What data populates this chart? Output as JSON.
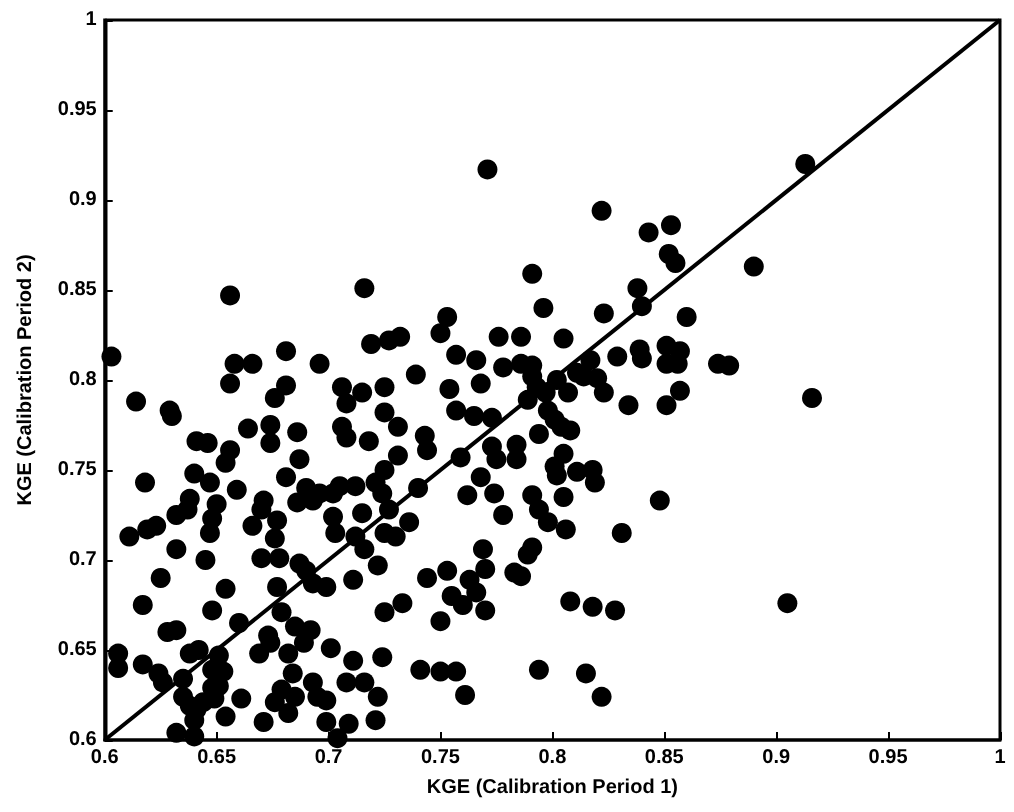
{
  "chart_data": {
    "type": "scatter",
    "xlabel": "KGE (Calibration Period 1)",
    "ylabel": "KGE (Calibration Period 2)",
    "xlim": [
      0.6,
      1
    ],
    "ylim": [
      0.6,
      1
    ],
    "xticks": [
      0.6,
      0.65,
      0.7,
      0.75,
      0.8,
      0.85,
      0.9,
      0.95,
      1
    ],
    "yticks": [
      0.6,
      0.65,
      0.7,
      0.75,
      0.8,
      0.85,
      0.9,
      0.95,
      1
    ],
    "grid": false,
    "marker": "circle",
    "series": [
      {
        "color": "#000000",
        "x": [
          0.656,
          0.716,
          0.603,
          0.658,
          0.666,
          0.681,
          0.696,
          0.719,
          0.727,
          0.614,
          0.629,
          0.63,
          0.656,
          0.681,
          0.676,
          0.706,
          0.708,
          0.715,
          0.725,
          0.725,
          0.641,
          0.646,
          0.664,
          0.674,
          0.686,
          0.674,
          0.706,
          0.708,
          0.718,
          0.656,
          0.654,
          0.687,
          0.64,
          0.647,
          0.618,
          0.681,
          0.69,
          0.696,
          0.686,
          0.693,
          0.702,
          0.705,
          0.712,
          0.721,
          0.725,
          0.724,
          0.659,
          0.638,
          0.65,
          0.632,
          0.637,
          0.648,
          0.671,
          0.67,
          0.677,
          0.647,
          0.611,
          0.619,
          0.623,
          0.632,
          0.645,
          0.666,
          0.676,
          0.703,
          0.702,
          0.712,
          0.715,
          0.725,
          0.716,
          0.727,
          0.67,
          0.678,
          0.687,
          0.69,
          0.693,
          0.699,
          0.711,
          0.722,
          0.625,
          0.677,
          0.654,
          0.648,
          0.617,
          0.679,
          0.725,
          0.66,
          0.628,
          0.632,
          0.685,
          0.692,
          0.689,
          0.673,
          0.674,
          0.669,
          0.701,
          0.638,
          0.642,
          0.651,
          0.606,
          0.606,
          0.617,
          0.624,
          0.626,
          0.635,
          0.648,
          0.653,
          0.682,
          0.684,
          0.711,
          0.724,
          0.635,
          0.638,
          0.641,
          0.644,
          0.648,
          0.651,
          0.649,
          0.661,
          0.676,
          0.679,
          0.682,
          0.685,
          0.693,
          0.695,
          0.699,
          0.708,
          0.716,
          0.722,
          0.654,
          0.64,
          0.64,
          0.632,
          0.671,
          0.699,
          0.709,
          0.721,
          0.704,
          0.838,
          0.84,
          0.796,
          0.823,
          0.753,
          0.732,
          0.75,
          0.776,
          0.786,
          0.805,
          0.757,
          0.766,
          0.778,
          0.786,
          0.791,
          0.791,
          0.793,
          0.797,
          0.817,
          0.811,
          0.829,
          0.84,
          0.839,
          0.851,
          0.851,
          0.739,
          0.754,
          0.768,
          0.802,
          0.807,
          0.814,
          0.82,
          0.823,
          0.789,
          0.757,
          0.765,
          0.773,
          0.798,
          0.801,
          0.804,
          0.808,
          0.794,
          0.834,
          0.851,
          0.743,
          0.744,
          0.773,
          0.784,
          0.775,
          0.784,
          0.759,
          0.801,
          0.802,
          0.805,
          0.811,
          0.818,
          0.819,
          0.768,
          0.74,
          0.762,
          0.774,
          0.791,
          0.805,
          0.848,
          0.778,
          0.794,
          0.798,
          0.806,
          0.831,
          0.769,
          0.791,
          0.789,
          0.77,
          0.753,
          0.744,
          0.763,
          0.783,
          0.786,
          0.766,
          0.755,
          0.76,
          0.77,
          0.75,
          0.808,
          0.818,
          0.828,
          0.741,
          0.75,
          0.757,
          0.794,
          0.815,
          0.761,
          0.822,
          0.733,
          0.731,
          0.731,
          0.736,
          0.73,
          0.913,
          0.89,
          0.86,
          0.857,
          0.856,
          0.874,
          0.879,
          0.857,
          0.916,
          0.905,
          0.853,
          0.852,
          0.855,
          0.771,
          0.791,
          0.822,
          0.843
        ],
        "values": [
          0.847,
          0.851,
          0.813,
          0.809,
          0.809,
          0.816,
          0.809,
          0.82,
          0.822,
          0.788,
          0.783,
          0.78,
          0.798,
          0.797,
          0.79,
          0.796,
          0.787,
          0.793,
          0.796,
          0.782,
          0.766,
          0.765,
          0.773,
          0.775,
          0.771,
          0.765,
          0.774,
          0.768,
          0.766,
          0.761,
          0.754,
          0.756,
          0.748,
          0.743,
          0.743,
          0.746,
          0.74,
          0.737,
          0.732,
          0.733,
          0.737,
          0.741,
          0.741,
          0.743,
          0.75,
          0.737,
          0.739,
          0.734,
          0.731,
          0.725,
          0.728,
          0.723,
          0.733,
          0.728,
          0.722,
          0.715,
          0.713,
          0.717,
          0.719,
          0.706,
          0.7,
          0.719,
          0.712,
          0.715,
          0.724,
          0.713,
          0.726,
          0.715,
          0.706,
          0.728,
          0.701,
          0.701,
          0.698,
          0.694,
          0.687,
          0.685,
          0.689,
          0.697,
          0.69,
          0.685,
          0.684,
          0.672,
          0.675,
          0.671,
          0.671,
          0.665,
          0.66,
          0.661,
          0.663,
          0.661,
          0.654,
          0.658,
          0.654,
          0.648,
          0.651,
          0.648,
          0.65,
          0.647,
          0.648,
          0.64,
          0.642,
          0.637,
          0.632,
          0.634,
          0.639,
          0.638,
          0.648,
          0.637,
          0.644,
          0.646,
          0.624,
          0.619,
          0.617,
          0.621,
          0.629,
          0.63,
          0.623,
          0.623,
          0.621,
          0.628,
          0.615,
          0.624,
          0.632,
          0.624,
          0.622,
          0.632,
          0.632,
          0.624,
          0.613,
          0.611,
          0.602,
          0.604,
          0.61,
          0.61,
          0.609,
          0.611,
          0.601,
          0.851,
          0.841,
          0.84,
          0.837,
          0.835,
          0.824,
          0.826,
          0.824,
          0.824,
          0.823,
          0.814,
          0.811,
          0.807,
          0.809,
          0.808,
          0.802,
          0.796,
          0.793,
          0.811,
          0.804,
          0.813,
          0.812,
          0.817,
          0.819,
          0.809,
          0.803,
          0.795,
          0.798,
          0.8,
          0.793,
          0.802,
          0.801,
          0.793,
          0.789,
          0.783,
          0.78,
          0.779,
          0.783,
          0.778,
          0.774,
          0.772,
          0.77,
          0.786,
          0.786,
          0.769,
          0.761,
          0.763,
          0.764,
          0.756,
          0.756,
          0.757,
          0.752,
          0.747,
          0.759,
          0.749,
          0.75,
          0.743,
          0.746,
          0.74,
          0.736,
          0.737,
          0.736,
          0.735,
          0.733,
          0.725,
          0.728,
          0.721,
          0.717,
          0.715,
          0.706,
          0.707,
          0.703,
          0.695,
          0.694,
          0.69,
          0.689,
          0.693,
          0.691,
          0.682,
          0.68,
          0.675,
          0.672,
          0.666,
          0.677,
          0.674,
          0.672,
          0.639,
          0.638,
          0.638,
          0.639,
          0.637,
          0.625,
          0.624,
          0.676,
          0.758,
          0.774,
          0.721,
          0.713,
          0.92,
          0.863,
          0.835,
          0.816,
          0.809,
          0.809,
          0.808,
          0.794,
          0.79,
          0.676,
          0.886,
          0.87,
          0.865,
          0.917,
          0.859,
          0.894,
          0.882
        ]
      },
      {
        "type": "line",
        "color": "#000000",
        "line_style": "solid",
        "marker": "none",
        "x": [
          0.6,
          1
        ],
        "values": [
          0.6,
          1
        ]
      }
    ]
  }
}
